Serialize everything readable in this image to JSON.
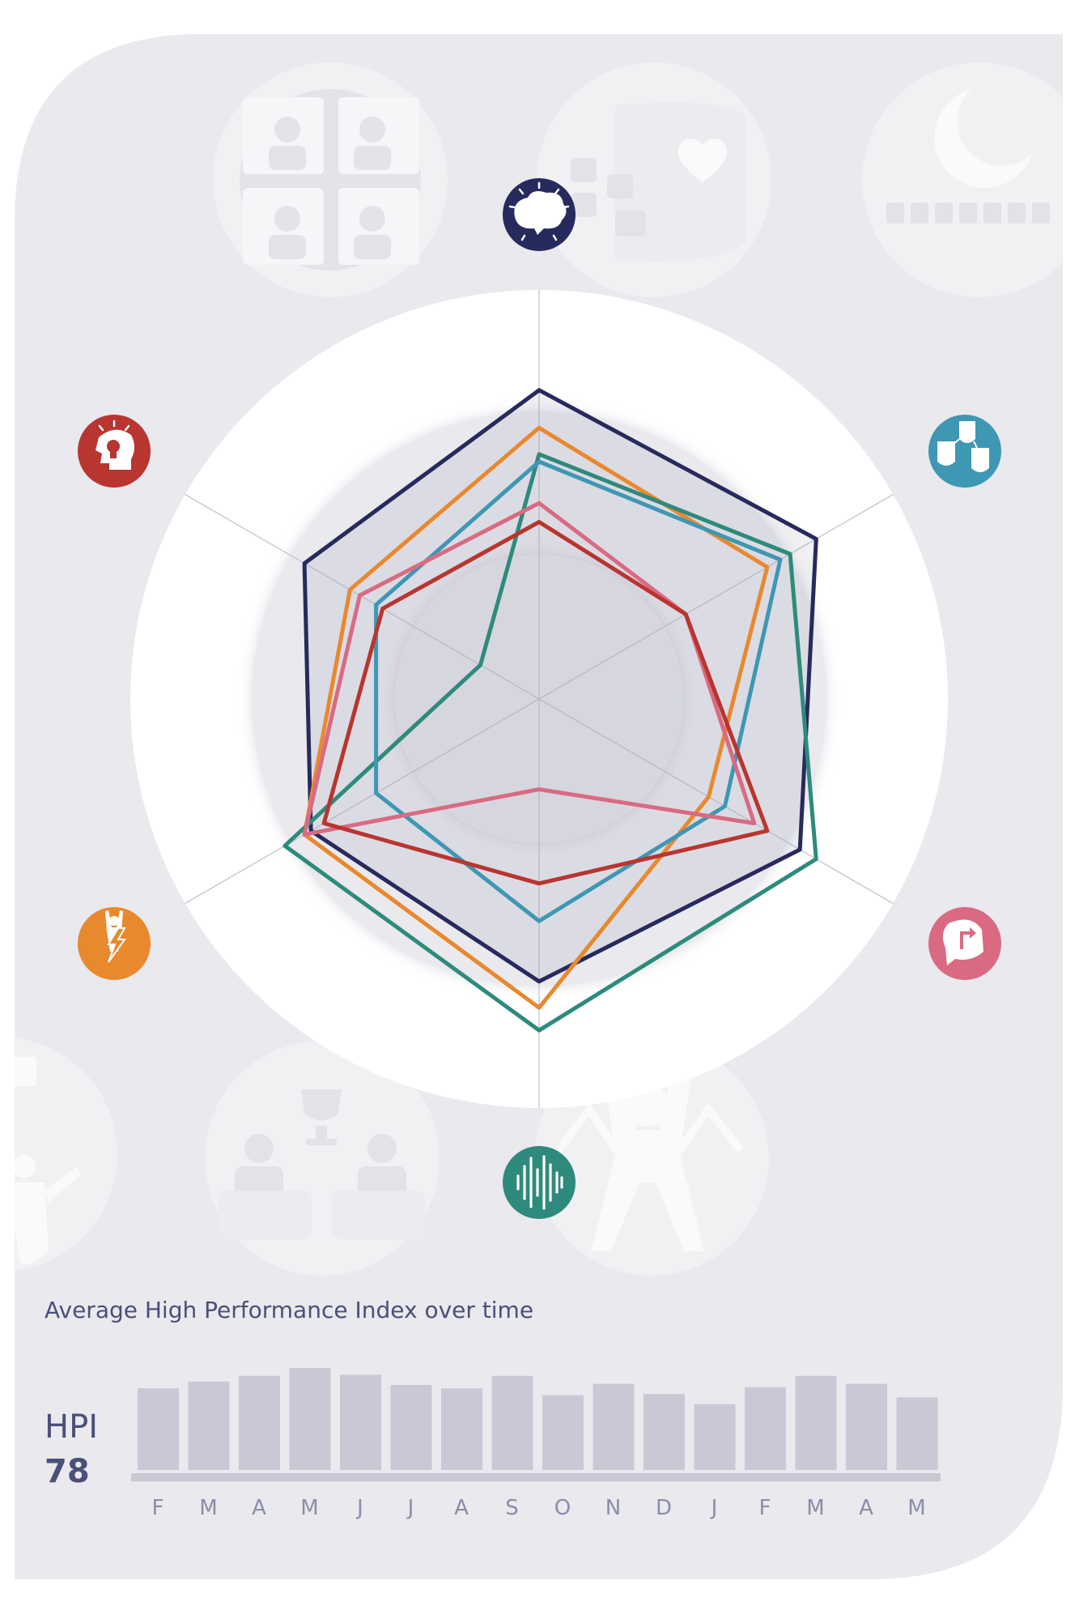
{
  "colors": {
    "card": "#e9e9ee",
    "ring": "#ffffff",
    "bg_icon": "#f1f1f4",
    "bar": "#c9c9d6",
    "axis_line": "#c4c4d0"
  },
  "background_icons": [
    "group-icon",
    "chat-heart-icon",
    "moon-bars-icon",
    "presenter-icon",
    "team-trophy-icon",
    "strong-person-icon"
  ],
  "radar_axes": [
    {
      "icon": "brain-icon",
      "color": "#262a5c"
    },
    {
      "icon": "social-faces-icon",
      "color": "#3e97b3"
    },
    {
      "icon": "direction-head-icon",
      "color": "#d96a82"
    },
    {
      "icon": "voice-wave-icon",
      "color": "#2e8a7c"
    },
    {
      "icon": "energy-person-icon",
      "color": "#e8892e"
    },
    {
      "icon": "idea-head-icon",
      "color": "#b83530"
    }
  ],
  "chart_data": [
    {
      "type": "radar",
      "axes_order": [
        "top",
        "upper-right",
        "lower-right",
        "bottom",
        "lower-left",
        "upper-left"
      ],
      "range": [
        0,
        1
      ],
      "series": [
        {
          "color": "#262a5c",
          "values": [
            0.82,
            0.85,
            0.8,
            0.75,
            0.7,
            0.72
          ],
          "filled": true
        },
        {
          "color": "#e8892e",
          "values": [
            0.72,
            0.7,
            0.52,
            0.82,
            0.72,
            0.58
          ]
        },
        {
          "color": "#2e8a7c",
          "values": [
            0.65,
            0.77,
            0.85,
            0.88,
            0.78,
            0.18
          ]
        },
        {
          "color": "#3e97b3",
          "values": [
            0.63,
            0.74,
            0.57,
            0.59,
            0.5,
            0.5
          ]
        },
        {
          "color": "#d96a82",
          "values": [
            0.52,
            0.45,
            0.66,
            0.24,
            0.72,
            0.55
          ]
        },
        {
          "color": "#b83530",
          "values": [
            0.47,
            0.45,
            0.7,
            0.49,
            0.66,
            0.48
          ]
        }
      ]
    },
    {
      "type": "bar",
      "title": "Average High Performance Index over time",
      "summary_label": "HPI",
      "summary_value": "78",
      "categories": [
        "F",
        "M",
        "A",
        "M",
        "J",
        "J",
        "A",
        "S",
        "O",
        "N",
        "D",
        "J",
        "F",
        "M",
        "A",
        "M"
      ],
      "values": [
        72,
        78,
        83,
        90,
        84,
        75,
        72,
        83,
        66,
        76,
        67,
        58,
        73,
        83,
        76,
        64
      ],
      "ylim": [
        0,
        100
      ]
    }
  ]
}
